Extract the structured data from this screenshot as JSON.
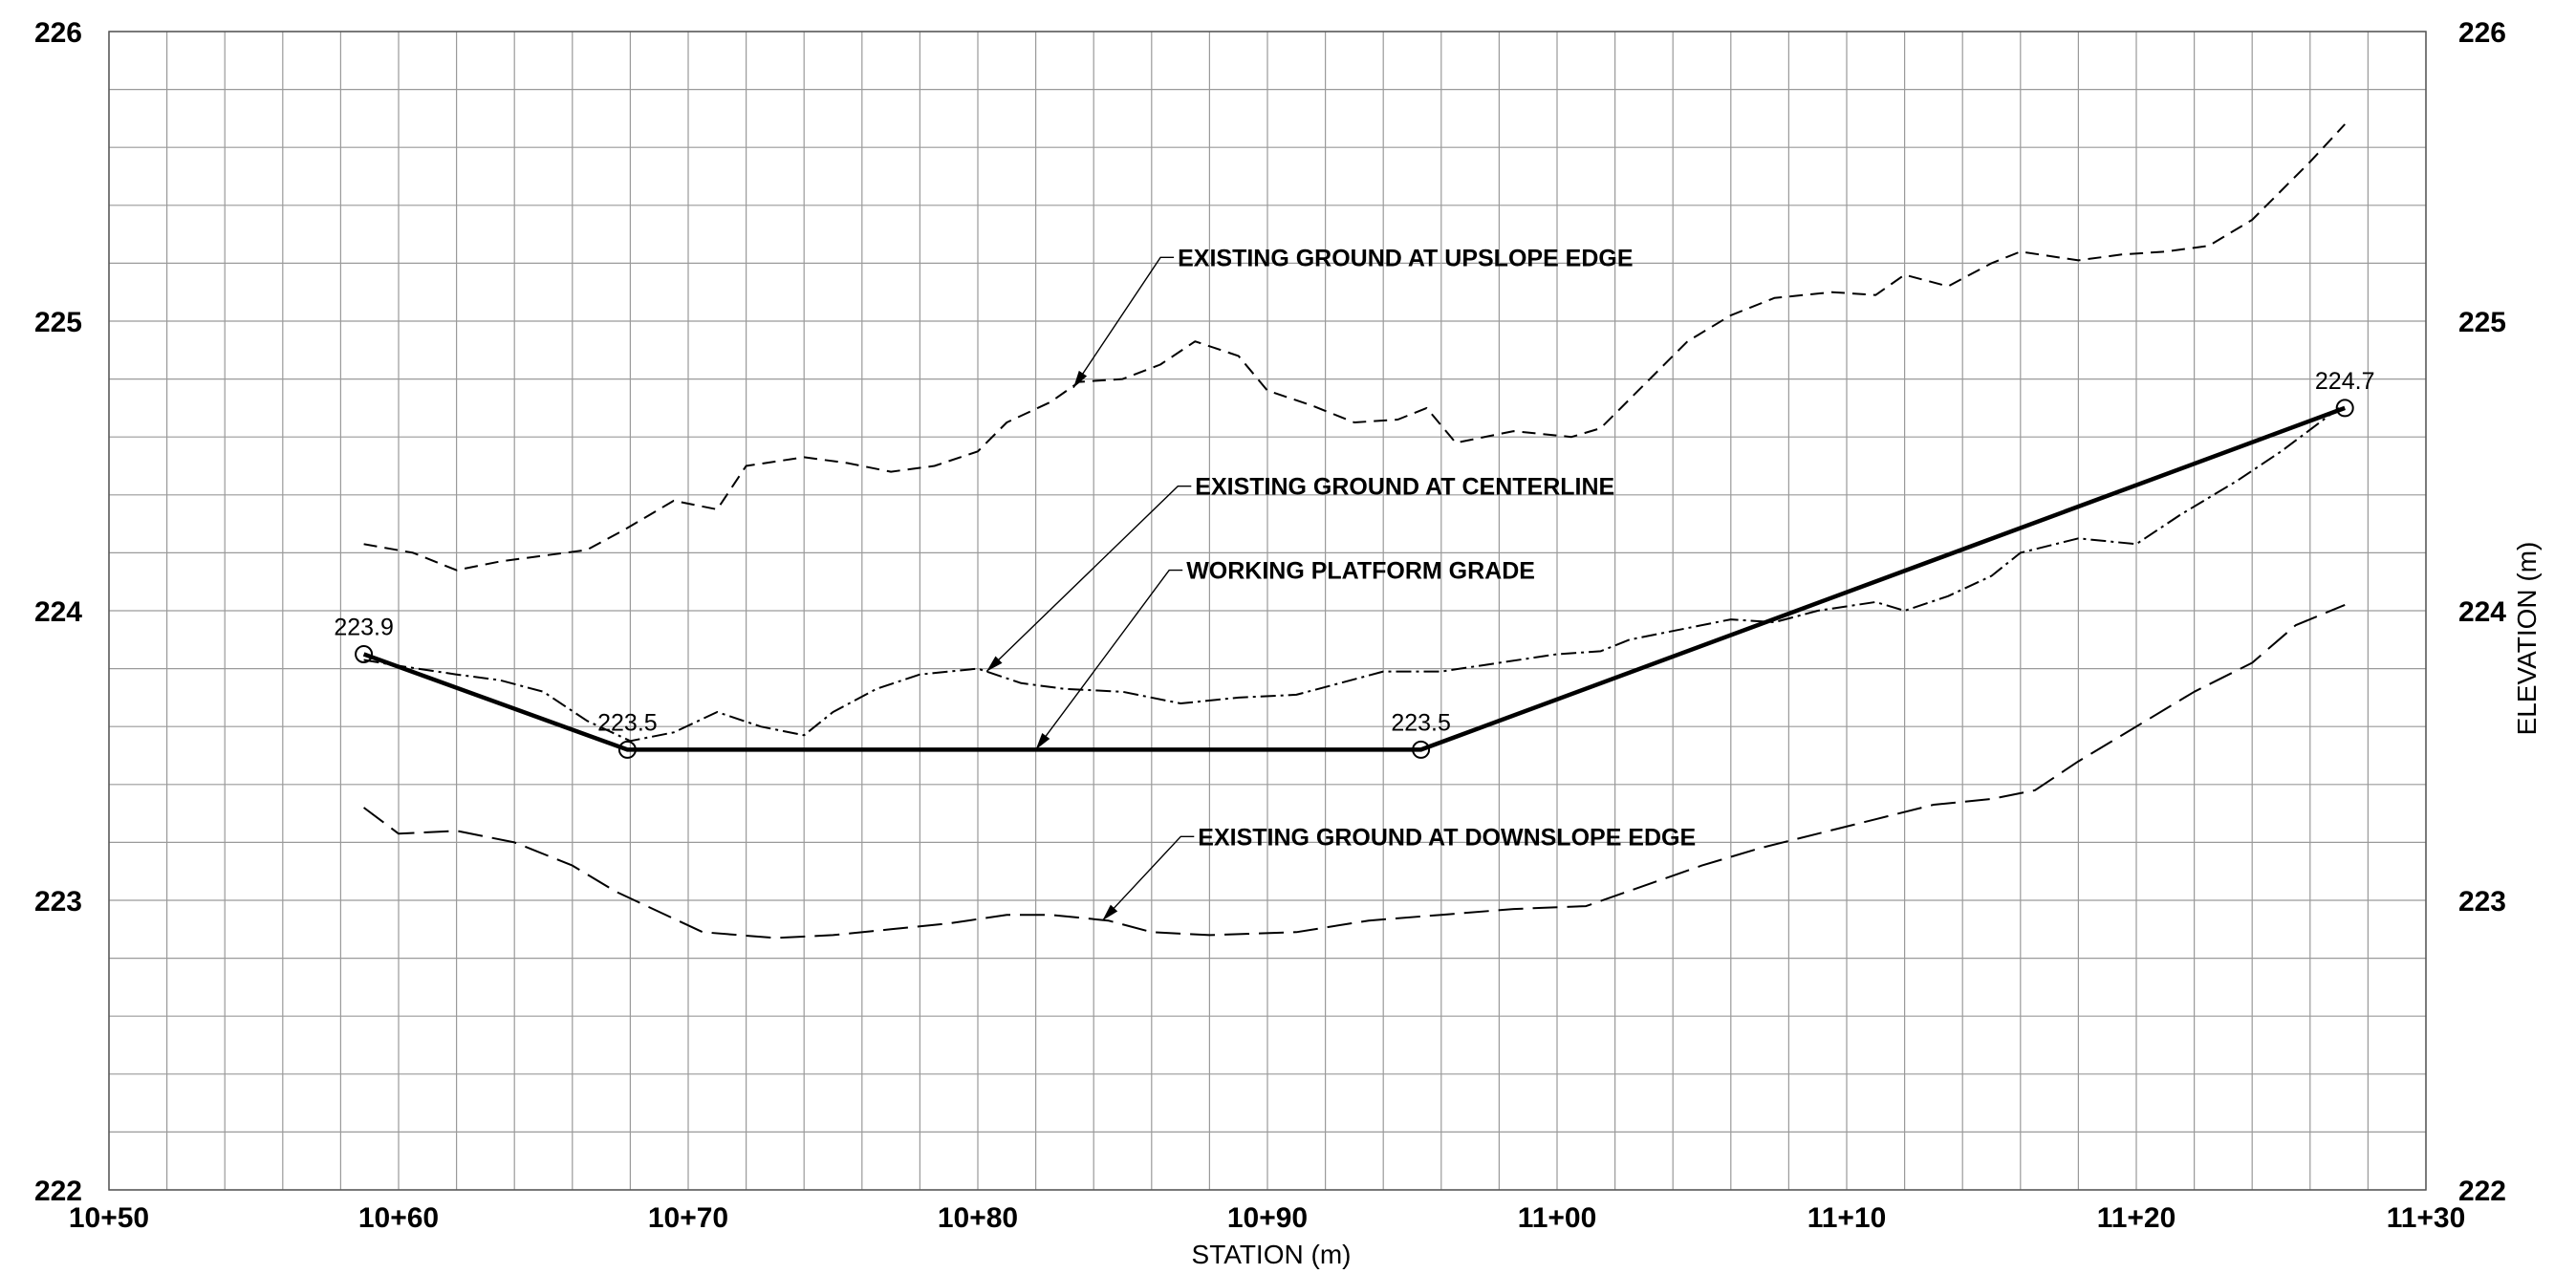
{
  "chart_data": {
    "type": "line",
    "xlabel": "STATION (m)",
    "ylabel": "ELEVATION (m)",
    "xlim": [
      1050,
      1130
    ],
    "ylim": [
      222,
      226
    ],
    "x_ticks": [
      {
        "value": 1050,
        "label": "10+50"
      },
      {
        "value": 1060,
        "label": "10+60"
      },
      {
        "value": 1070,
        "label": "10+70"
      },
      {
        "value": 1080,
        "label": "10+80"
      },
      {
        "value": 1090,
        "label": "10+90"
      },
      {
        "value": 1100,
        "label": "11+00"
      },
      {
        "value": 1110,
        "label": "11+10"
      },
      {
        "value": 1120,
        "label": "11+20"
      },
      {
        "value": 1130,
        "label": "11+30"
      }
    ],
    "y_ticks": [
      {
        "value": 222,
        "label": "222"
      },
      {
        "value": 223,
        "label": "223"
      },
      {
        "value": 224,
        "label": "224"
      },
      {
        "value": 225,
        "label": "225"
      },
      {
        "value": 226,
        "label": "226"
      }
    ],
    "grid": true,
    "series": [
      {
        "name": "EXISTING GROUND AT UPSLOPE EDGE",
        "color": "#000000",
        "style": "dashed",
        "points": [
          [
            1058.8,
            224.23
          ],
          [
            1060.5,
            224.2
          ],
          [
            1062.0,
            224.14
          ],
          [
            1063.5,
            224.17
          ],
          [
            1065.0,
            224.19
          ],
          [
            1066.5,
            224.21
          ],
          [
            1067.8,
            224.28
          ],
          [
            1069.5,
            224.38
          ],
          [
            1071.0,
            224.35
          ],
          [
            1072.0,
            224.5
          ],
          [
            1074.0,
            224.53
          ],
          [
            1075.5,
            224.51
          ],
          [
            1077.0,
            224.48
          ],
          [
            1078.5,
            224.5
          ],
          [
            1080.0,
            224.55
          ],
          [
            1081.0,
            224.65
          ],
          [
            1082.5,
            224.72
          ],
          [
            1083.5,
            224.79
          ],
          [
            1085.0,
            224.8
          ],
          [
            1086.3,
            224.85
          ],
          [
            1087.5,
            224.93
          ],
          [
            1089.0,
            224.88
          ],
          [
            1090.0,
            224.76
          ],
          [
            1091.5,
            224.71
          ],
          [
            1093.0,
            224.65
          ],
          [
            1094.5,
            224.66
          ],
          [
            1095.5,
            224.7
          ],
          [
            1096.5,
            224.58
          ],
          [
            1098.5,
            224.62
          ],
          [
            1100.5,
            224.6
          ],
          [
            1101.5,
            224.63
          ],
          [
            1103.0,
            224.78
          ],
          [
            1104.5,
            224.93
          ],
          [
            1106.0,
            225.02
          ],
          [
            1107.5,
            225.08
          ],
          [
            1109.5,
            225.1
          ],
          [
            1111.0,
            225.09
          ],
          [
            1112.0,
            225.16
          ],
          [
            1113.5,
            225.12
          ],
          [
            1115.0,
            225.2
          ],
          [
            1116.0,
            225.24
          ],
          [
            1118.0,
            225.21
          ],
          [
            1119.5,
            225.23
          ],
          [
            1121.0,
            225.24
          ],
          [
            1122.5,
            225.26
          ],
          [
            1124.0,
            225.35
          ],
          [
            1126.0,
            225.55
          ],
          [
            1127.2,
            225.68
          ]
        ]
      },
      {
        "name": "EXISTING GROUND AT CENTERLINE",
        "color": "#000000",
        "style": "dash-dot",
        "points": [
          [
            1058.8,
            223.83
          ],
          [
            1060.0,
            223.81
          ],
          [
            1062.0,
            223.78
          ],
          [
            1063.5,
            223.76
          ],
          [
            1065.0,
            223.72
          ],
          [
            1066.5,
            223.62
          ],
          [
            1068.0,
            223.55
          ],
          [
            1069.5,
            223.58
          ],
          [
            1071.0,
            223.65
          ],
          [
            1072.5,
            223.6
          ],
          [
            1074.0,
            223.57
          ],
          [
            1075.0,
            223.65
          ],
          [
            1076.5,
            223.73
          ],
          [
            1078.0,
            223.78
          ],
          [
            1080.0,
            223.8
          ],
          [
            1081.5,
            223.75
          ],
          [
            1083.0,
            223.73
          ],
          [
            1085.0,
            223.72
          ],
          [
            1087.0,
            223.68
          ],
          [
            1089.0,
            223.7
          ],
          [
            1091.0,
            223.71
          ],
          [
            1092.5,
            223.75
          ],
          [
            1094.0,
            223.79
          ],
          [
            1096.0,
            223.79
          ],
          [
            1098.0,
            223.82
          ],
          [
            1100.0,
            223.85
          ],
          [
            1101.5,
            223.86
          ],
          [
            1102.5,
            223.9
          ],
          [
            1104.0,
            223.93
          ],
          [
            1106.0,
            223.97
          ],
          [
            1107.5,
            223.96
          ],
          [
            1109.0,
            224.0
          ],
          [
            1111.0,
            224.03
          ],
          [
            1112.0,
            224.0
          ],
          [
            1113.5,
            224.05
          ],
          [
            1115.0,
            224.12
          ],
          [
            1116.0,
            224.2
          ],
          [
            1118.0,
            224.25
          ],
          [
            1120.0,
            224.23
          ],
          [
            1121.5,
            224.33
          ],
          [
            1123.5,
            224.45
          ],
          [
            1125.0,
            224.55
          ],
          [
            1127.0,
            224.7
          ]
        ]
      },
      {
        "name": "EXISTING GROUND AT DOWNSLOPE EDGE",
        "color": "#000000",
        "style": "long-dash",
        "points": [
          [
            1058.8,
            223.32
          ],
          [
            1060.0,
            223.23
          ],
          [
            1062.0,
            223.24
          ],
          [
            1064.0,
            223.2
          ],
          [
            1066.0,
            223.12
          ],
          [
            1067.5,
            223.03
          ],
          [
            1069.0,
            222.96
          ],
          [
            1070.5,
            222.89
          ],
          [
            1073.0,
            222.87
          ],
          [
            1075.0,
            222.88
          ],
          [
            1077.0,
            222.9
          ],
          [
            1079.0,
            222.92
          ],
          [
            1081.0,
            222.95
          ],
          [
            1082.5,
            222.95
          ],
          [
            1084.5,
            222.93
          ],
          [
            1086.0,
            222.89
          ],
          [
            1088.0,
            222.88
          ],
          [
            1091.0,
            222.89
          ],
          [
            1093.5,
            222.93
          ],
          [
            1096.0,
            222.95
          ],
          [
            1098.5,
            222.97
          ],
          [
            1101.0,
            222.98
          ],
          [
            1103.0,
            223.05
          ],
          [
            1105.0,
            223.12
          ],
          [
            1107.0,
            223.18
          ],
          [
            1109.0,
            223.23
          ],
          [
            1111.0,
            223.28
          ],
          [
            1113.0,
            223.33
          ],
          [
            1115.0,
            223.35
          ],
          [
            1116.5,
            223.38
          ],
          [
            1118.0,
            223.48
          ],
          [
            1120.0,
            223.6
          ],
          [
            1122.0,
            223.72
          ],
          [
            1124.0,
            223.82
          ],
          [
            1125.5,
            223.95
          ],
          [
            1127.2,
            224.02
          ]
        ]
      },
      {
        "name": "WORKING PLATFORM GRADE",
        "color": "#000000",
        "style": "solid",
        "points": [
          [
            1058.8,
            223.85
          ],
          [
            1067.9,
            223.52
          ],
          [
            1095.3,
            223.52
          ],
          [
            1127.2,
            224.7
          ]
        ]
      }
    ],
    "point_labels": [
      {
        "x": 1058.8,
        "y": 223.85,
        "label": "223.9"
      },
      {
        "x": 1067.9,
        "y": 223.52,
        "label": "223.5"
      },
      {
        "x": 1095.3,
        "y": 223.52,
        "label": "223.5"
      },
      {
        "x": 1127.2,
        "y": 224.7,
        "label": "224.7"
      }
    ],
    "annotations": [
      {
        "text": "EXISTING GROUND AT UPSLOPE EDGE",
        "text_x": 1086.9,
        "text_y": 225.22,
        "target_x": 1083.3,
        "target_y": 224.77
      },
      {
        "text": "EXISTING GROUND AT CENTERLINE",
        "text_x": 1087.5,
        "text_y": 224.43,
        "target_x": 1080.3,
        "target_y": 223.79
      },
      {
        "text": "WORKING PLATFORM GRADE",
        "text_x": 1087.2,
        "text_y": 224.14,
        "target_x": 1082.0,
        "target_y": 223.52
      },
      {
        "text": "EXISTING GROUND AT DOWNSLOPE EDGE",
        "text_x": 1087.6,
        "text_y": 223.22,
        "target_x": 1084.3,
        "target_y": 222.93
      }
    ]
  }
}
